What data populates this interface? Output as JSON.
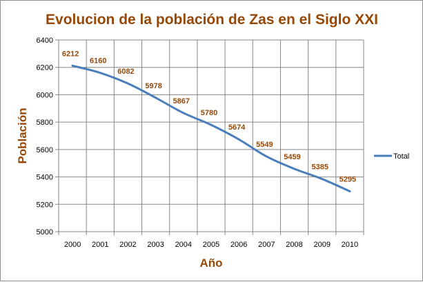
{
  "chart_data": {
    "type": "line",
    "title": "Evolucion de la población de Zas en el Siglo XXI",
    "xlabel": "Año",
    "ylabel": "Población",
    "x": [
      "2000",
      "2001",
      "2002",
      "2003",
      "2004",
      "2005",
      "2006",
      "2007",
      "2008",
      "2009",
      "2010"
    ],
    "series": [
      {
        "name": "Total",
        "values": [
          6212,
          6160,
          6082,
          5978,
          5867,
          5780,
          5674,
          5549,
          5459,
          5385,
          5295
        ],
        "labels": [
          "6212",
          "6160",
          "6082",
          "5978",
          "5867",
          "5780",
          "5674",
          "5549",
          "5459",
          "5385",
          "5295"
        ]
      }
    ],
    "yticks": [
      "5000",
      "5200",
      "5400",
      "5600",
      "5800",
      "6000",
      "6200",
      "6400"
    ],
    "ylim": [
      5000,
      6400
    ],
    "grid": true,
    "legend_position": "right",
    "colors": {
      "line": "#4a7ebb",
      "title": "#984806",
      "data_labels": "#984806",
      "grid": "#868686",
      "text": "#000000"
    }
  }
}
